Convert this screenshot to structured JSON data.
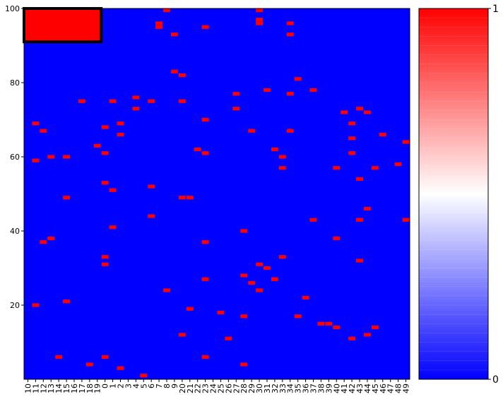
{
  "chart_data": {
    "type": "heatmap",
    "x_tick_labels": [
      "10",
      "11",
      "12",
      "13",
      "14",
      "15",
      "16",
      "17",
      "18",
      "19",
      "0",
      "1",
      "2",
      "3",
      "4",
      "5",
      "6",
      "7",
      "8",
      "9",
      "20",
      "21",
      "22",
      "23",
      "24",
      "25",
      "26",
      "27",
      "28",
      "29",
      "30",
      "31",
      "32",
      "33",
      "34",
      "35",
      "36",
      "37",
      "38",
      "39",
      "40",
      "41",
      "42",
      "43",
      "44",
      "45",
      "46",
      "47",
      "48",
      "49"
    ],
    "y_ticks": [
      20,
      40,
      60,
      80,
      100
    ],
    "xlim": [
      -0.5,
      49.5
    ],
    "ylim": [
      0,
      100
    ],
    "colorbar": {
      "ticks": [
        "0",
        "1"
      ],
      "colormap": "bwr",
      "low_color": "#0000ff",
      "mid_color": "#ffffff",
      "high_color": "#ff0000"
    },
    "background_value": 0,
    "highlight_region": {
      "x_from": "10",
      "x_to": "19",
      "y_from": 91,
      "y_to": 100,
      "value": 1,
      "outline_color": "#000000"
    },
    "cells_value_1": [
      [
        "11",
        20
      ],
      [
        "11",
        59
      ],
      [
        "11",
        69
      ],
      [
        "12",
        37
      ],
      [
        "12",
        67
      ],
      [
        "13",
        38
      ],
      [
        "13",
        60
      ],
      [
        "14",
        6
      ],
      [
        "15",
        21
      ],
      [
        "15",
        49
      ],
      [
        "15",
        60
      ],
      [
        "17",
        75
      ],
      [
        "18",
        4
      ],
      [
        "19",
        63
      ],
      [
        "0",
        6
      ],
      [
        "0",
        31
      ],
      [
        "0",
        33
      ],
      [
        "0",
        53
      ],
      [
        "0",
        61
      ],
      [
        "0",
        68
      ],
      [
        "1",
        41
      ],
      [
        "1",
        51
      ],
      [
        "1",
        75
      ],
      [
        "2",
        3
      ],
      [
        "2",
        66
      ],
      [
        "2",
        69
      ],
      [
        "4",
        73
      ],
      [
        "4",
        76
      ],
      [
        "5",
        1
      ],
      [
        "6",
        44
      ],
      [
        "6",
        52
      ],
      [
        "6",
        75
      ],
      [
        "7",
        95
      ],
      [
        "7",
        96
      ],
      [
        "8",
        24
      ],
      [
        "8",
        100
      ],
      [
        "9",
        83
      ],
      [
        "9",
        93
      ],
      [
        "20",
        12
      ],
      [
        "20",
        49
      ],
      [
        "20",
        75
      ],
      [
        "20",
        82
      ],
      [
        "21",
        19
      ],
      [
        "21",
        49
      ],
      [
        "22",
        62
      ],
      [
        "23",
        6
      ],
      [
        "23",
        27
      ],
      [
        "23",
        37
      ],
      [
        "23",
        61
      ],
      [
        "23",
        70
      ],
      [
        "23",
        95
      ],
      [
        "25",
        18
      ],
      [
        "26",
        11
      ],
      [
        "27",
        73
      ],
      [
        "27",
        77
      ],
      [
        "28",
        4
      ],
      [
        "28",
        17
      ],
      [
        "28",
        28
      ],
      [
        "28",
        40
      ],
      [
        "29",
        26
      ],
      [
        "29",
        67
      ],
      [
        "30",
        24
      ],
      [
        "30",
        31
      ],
      [
        "30",
        96
      ],
      [
        "30",
        97
      ],
      [
        "30",
        100
      ],
      [
        "31",
        30
      ],
      [
        "31",
        78
      ],
      [
        "32",
        27
      ],
      [
        "32",
        62
      ],
      [
        "33",
        33
      ],
      [
        "33",
        57
      ],
      [
        "33",
        60
      ],
      [
        "34",
        67
      ],
      [
        "34",
        77
      ],
      [
        "34",
        93
      ],
      [
        "34",
        96
      ],
      [
        "35",
        17
      ],
      [
        "35",
        81
      ],
      [
        "36",
        22
      ],
      [
        "37",
        43
      ],
      [
        "37",
        78
      ],
      [
        "38",
        15
      ],
      [
        "39",
        15
      ],
      [
        "40",
        14
      ],
      [
        "40",
        38
      ],
      [
        "40",
        57
      ],
      [
        "41",
        72
      ],
      [
        "42",
        11
      ],
      [
        "42",
        61
      ],
      [
        "42",
        65
      ],
      [
        "42",
        69
      ],
      [
        "43",
        32
      ],
      [
        "43",
        43
      ],
      [
        "43",
        54
      ],
      [
        "43",
        73
      ],
      [
        "44",
        12
      ],
      [
        "44",
        46
      ],
      [
        "44",
        72
      ],
      [
        "45",
        14
      ],
      [
        "45",
        57
      ],
      [
        "46",
        66
      ],
      [
        "48",
        58
      ],
      [
        "49",
        43
      ],
      [
        "49",
        64
      ]
    ]
  }
}
